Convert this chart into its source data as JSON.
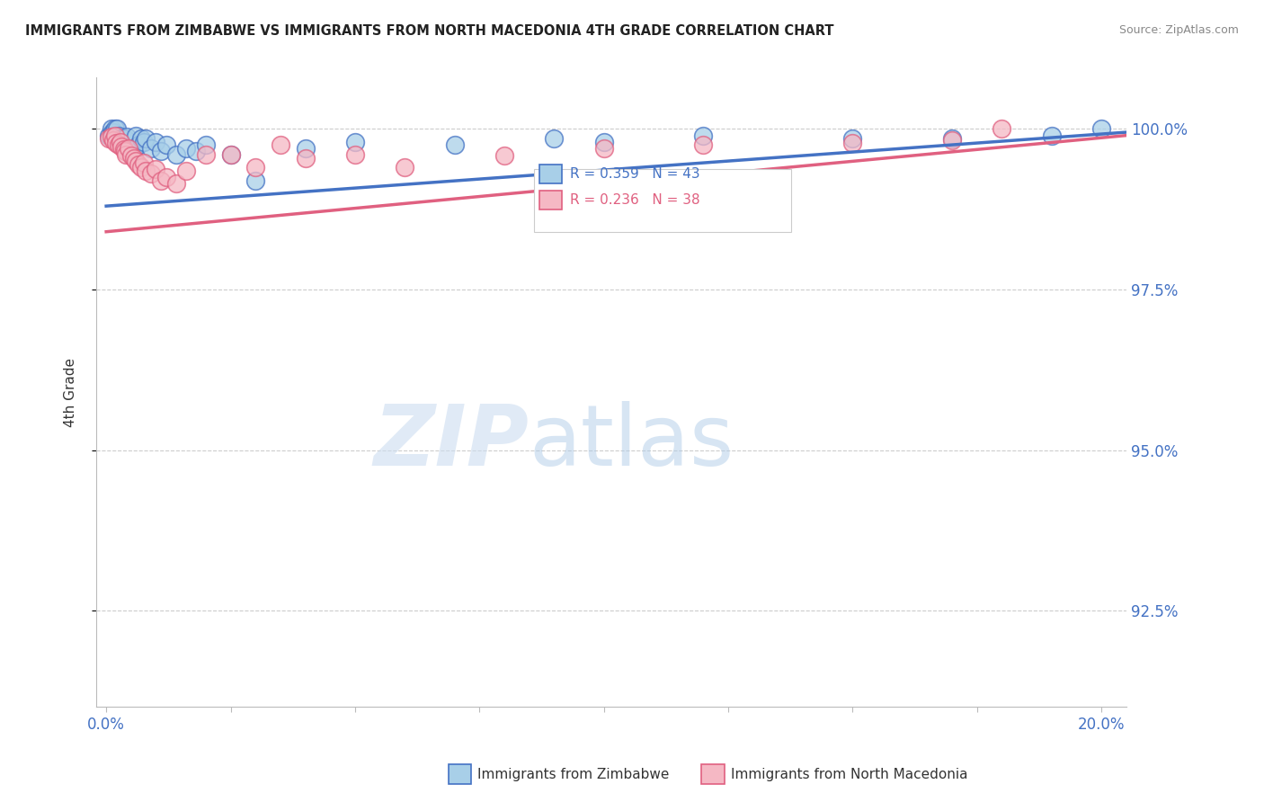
{
  "title": "IMMIGRANTS FROM ZIMBABWE VS IMMIGRANTS FROM NORTH MACEDONIA 4TH GRADE CORRELATION CHART",
  "source": "Source: ZipAtlas.com",
  "ylabel": "4th Grade",
  "y_min": 0.91,
  "y_max": 1.008,
  "x_min": -0.002,
  "x_max": 0.205,
  "legend1_label": "Immigrants from Zimbabwe",
  "legend2_label": "Immigrants from North Macedonia",
  "R_blue": 0.359,
  "N_blue": 43,
  "R_pink": 0.236,
  "N_pink": 38,
  "color_blue": "#a8cfe8",
  "color_pink": "#f5b8c4",
  "line_blue": "#4472c4",
  "line_pink": "#e06080",
  "blue_x": [
    0.0005,
    0.001,
    0.0012,
    0.0015,
    0.0018,
    0.002,
    0.0022,
    0.0025,
    0.0028,
    0.003,
    0.0032,
    0.0035,
    0.0038,
    0.004,
    0.0042,
    0.0045,
    0.005,
    0.0055,
    0.006,
    0.0065,
    0.007,
    0.0075,
    0.008,
    0.009,
    0.01,
    0.011,
    0.012,
    0.014,
    0.016,
    0.018,
    0.02,
    0.025,
    0.03,
    0.04,
    0.05,
    0.07,
    0.09,
    0.1,
    0.12,
    0.15,
    0.17,
    0.19,
    0.2
  ],
  "blue_y": [
    0.999,
    1.0,
    0.9995,
    0.9995,
    1.0,
    0.9985,
    1.0,
    0.999,
    0.9985,
    0.998,
    0.9985,
    0.9975,
    0.9985,
    0.997,
    0.9988,
    0.9965,
    0.996,
    0.997,
    0.999,
    0.9975,
    0.9985,
    0.998,
    0.9985,
    0.997,
    0.998,
    0.9965,
    0.9975,
    0.996,
    0.997,
    0.9965,
    0.9975,
    0.996,
    0.992,
    0.997,
    0.998,
    0.9975,
    0.9985,
    0.998,
    0.999,
    0.9985,
    0.9985,
    0.999,
    1.0
  ],
  "pink_x": [
    0.0005,
    0.001,
    0.0015,
    0.0018,
    0.002,
    0.0025,
    0.0028,
    0.003,
    0.0035,
    0.0038,
    0.004,
    0.0045,
    0.005,
    0.0055,
    0.006,
    0.0065,
    0.007,
    0.0075,
    0.008,
    0.009,
    0.01,
    0.011,
    0.012,
    0.014,
    0.016,
    0.02,
    0.025,
    0.03,
    0.035,
    0.04,
    0.05,
    0.06,
    0.08,
    0.1,
    0.12,
    0.15,
    0.17,
    0.18
  ],
  "pink_y": [
    0.9985,
    0.9988,
    0.9982,
    0.999,
    0.9978,
    0.9975,
    0.998,
    0.9972,
    0.9968,
    0.9965,
    0.996,
    0.997,
    0.9958,
    0.9955,
    0.995,
    0.9945,
    0.994,
    0.9948,
    0.9935,
    0.993,
    0.9938,
    0.992,
    0.9925,
    0.9915,
    0.9935,
    0.996,
    0.996,
    0.994,
    0.9975,
    0.9955,
    0.996,
    0.994,
    0.9958,
    0.997,
    0.9975,
    0.9978,
    0.9982,
    1.0
  ]
}
